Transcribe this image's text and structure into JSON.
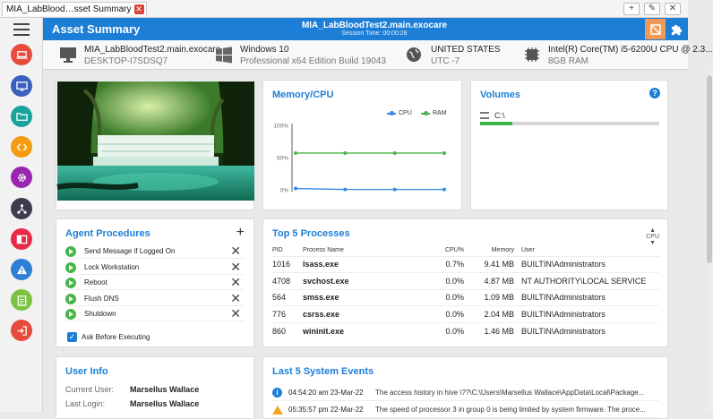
{
  "browser": {
    "tab_title": "MIA_LabBlood…sset Summary",
    "tab_close": "✕",
    "buttons": [
      "+",
      "✎",
      "✕"
    ]
  },
  "header": {
    "title": "Asset Summary",
    "host": "MIA_LabBloodTest2.main.exocare",
    "session": "Session Time: 00:00:28"
  },
  "rail": {
    "items": [
      {
        "icon": "laptop-icon",
        "color": "#e84b3c"
      },
      {
        "icon": "monitor-icon",
        "color": "#3b5fc0"
      },
      {
        "icon": "folder-icon",
        "color": "#1aa39a"
      },
      {
        "icon": "code-icon",
        "color": "#f39c12"
      },
      {
        "icon": "gear-icon",
        "color": "#9b27b0"
      },
      {
        "icon": "network-icon",
        "color": "#3d3d4e"
      },
      {
        "icon": "window-icon",
        "color": "#e8294a"
      },
      {
        "icon": "warning-icon",
        "color": "#2f7fd8"
      },
      {
        "icon": "clipboard-icon",
        "color": "#7cc242"
      },
      {
        "icon": "logout-icon",
        "color": "#e84b3c"
      }
    ]
  },
  "sysinfo": {
    "machine": {
      "main": "MIA_LabBloodTest2.main.exocare",
      "sub": "DESKTOP-I7SDSQ7"
    },
    "os": {
      "main": "Windows 10",
      "sub": "Professional x64 Edition Build 19043"
    },
    "region": {
      "main": "UNITED STATES",
      "sub": "UTC -7"
    },
    "cpu": {
      "main": "Intel(R) Core(TM) i5-6200U CPU @ 2.3...",
      "sub": "8GB RAM"
    }
  },
  "memory_cpu": {
    "title": "Memory/CPU",
    "legend": [
      "CPU",
      "RAM"
    ],
    "colors": {
      "cpu": "#2f8de4",
      "ram": "#48b548"
    }
  },
  "chart_data": {
    "type": "line",
    "title": "Memory/CPU",
    "x": [
      1,
      2,
      3,
      4
    ],
    "ylim": [
      0,
      100
    ],
    "yticks": [
      "100%",
      "50%",
      "0%"
    ],
    "series": [
      {
        "name": "CPU",
        "values": [
          2,
          0.5,
          0.5,
          0.5
        ]
      },
      {
        "name": "RAM",
        "values": [
          57,
          57,
          57,
          57
        ]
      }
    ],
    "legend_placement": "top-right"
  },
  "volumes": {
    "title": "Volumes",
    "help": "?",
    "items": [
      {
        "label": "C:\\",
        "used_fraction": 0.18
      }
    ]
  },
  "agent_procedures": {
    "title": "Agent Procedures",
    "add": "+",
    "items": [
      "Send Message if Logged On",
      "Lock Workstation",
      "Reboot",
      "Flush DNS",
      "Shutdown"
    ],
    "remove": "✕",
    "ask_label": "Ask Before Executing",
    "ask_checked": true
  },
  "processes": {
    "title": "Top 5 Processes",
    "sort_label": "CPU",
    "columns": [
      "PID",
      "Process Name",
      "CPU%",
      "Memory",
      "User"
    ],
    "rows": [
      [
        "1016",
        "lsass.exe",
        "0.7%",
        "9.41 MB",
        "BUILTIN\\Administrators"
      ],
      [
        "4708",
        "svchost.exe",
        "0.0%",
        "4.87 MB",
        "NT AUTHORITY\\LOCAL SERVICE"
      ],
      [
        "564",
        "smss.exe",
        "0.0%",
        "1.09 MB",
        "BUILTIN\\Administrators"
      ],
      [
        "776",
        "csrss.exe",
        "0.0%",
        "2.04 MB",
        "BUILTIN\\Administrators"
      ],
      [
        "860",
        "wininit.exe",
        "0.0%",
        "1.46 MB",
        "BUILTIN\\Administrators"
      ]
    ]
  },
  "user_info": {
    "title": "User Info",
    "current_user_label": "Current User:",
    "current_user": "Marsellus Wallace",
    "last_login_label": "Last Login:",
    "last_login": "Marsellus Wallace"
  },
  "events": {
    "title": "Last 5 System Events",
    "rows": [
      {
        "type": "info",
        "time": "04:54:20 am 23-Mar-22",
        "msg": "The access history in hive \\??\\C:\\Users\\Marsellus Wallace\\AppData\\Local\\Package..."
      },
      {
        "type": "warning",
        "time": "05:35:57 pm 22-Mar-22",
        "msg": "The speed of processor 3 in group 0 is being limited by system firmware. The proce..."
      }
    ]
  }
}
